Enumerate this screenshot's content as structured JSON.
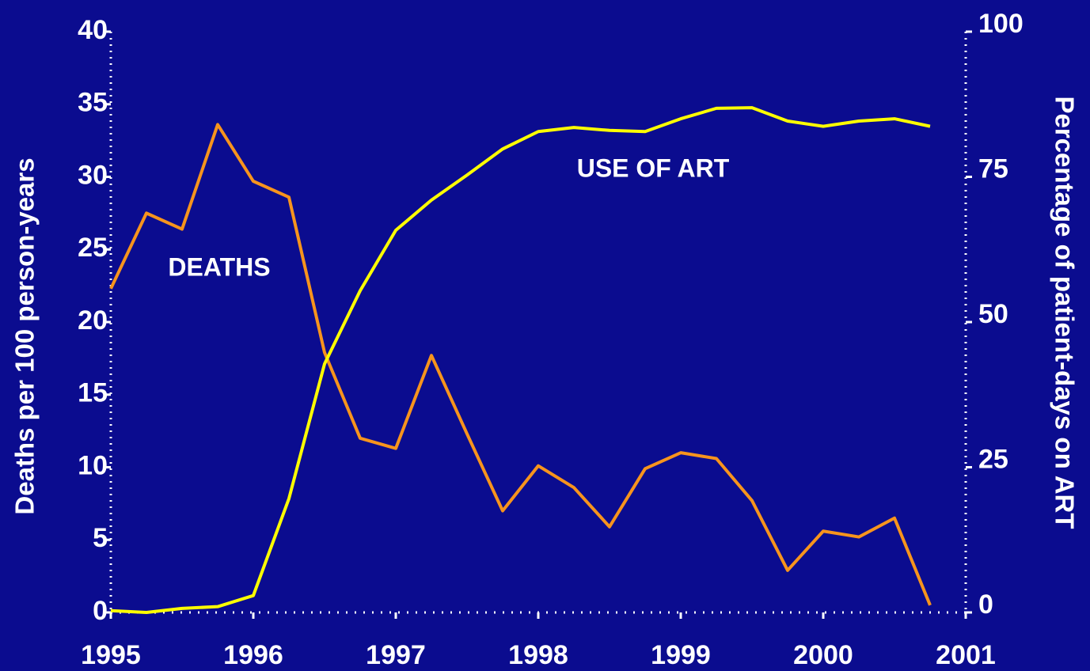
{
  "chart_data": {
    "type": "line",
    "x": [
      1995,
      1995.25,
      1995.5,
      1995.75,
      1996,
      1996.25,
      1996.5,
      1996.75,
      1997,
      1997.25,
      1997.5,
      1997.75,
      1998,
      1998.25,
      1998.5,
      1998.75,
      1999,
      1999.25,
      1999.5,
      1999.75,
      2000,
      2000.25,
      2000.5,
      2000.75
    ],
    "xlim": [
      1995,
      2001
    ],
    "xticks": [
      1995,
      1996,
      1997,
      1998,
      1999,
      2000,
      2001
    ],
    "y_label": "Deaths per 100 person-years",
    "y2_label": "Percentage of patient-days on ART",
    "ylim": [
      0,
      40
    ],
    "yticks": [
      0,
      5,
      10,
      15,
      20,
      25,
      30,
      35,
      40
    ],
    "y2lim": [
      0,
      100
    ],
    "y2ticks": [
      0,
      25,
      50,
      75,
      100
    ],
    "series": [
      {
        "name": "DEATHS",
        "color": "#f7941d",
        "axis": "y",
        "values": [
          22.3,
          27.5,
          26.4,
          33.6,
          29.7,
          28.6,
          17.9,
          12.0,
          11.3,
          17.7,
          12.3,
          7.0,
          10.1,
          8.6,
          5.9,
          9.9,
          11.0,
          10.6,
          7.7,
          2.9,
          5.6,
          5.2,
          6.5,
          0.5
        ]
      },
      {
        "name": "USE OF ART",
        "color": "#ffff00",
        "axis": "y2",
        "values": [
          0.3,
          0,
          0.7,
          1.0,
          2.9,
          19.6,
          42.8,
          55.4,
          65.8,
          71.0,
          75.3,
          79.8,
          82.8,
          83.5,
          83.0,
          82.8,
          85.0,
          86.8,
          86.9,
          84.6,
          83.7,
          84.6,
          85.0,
          83.7
        ]
      }
    ]
  }
}
